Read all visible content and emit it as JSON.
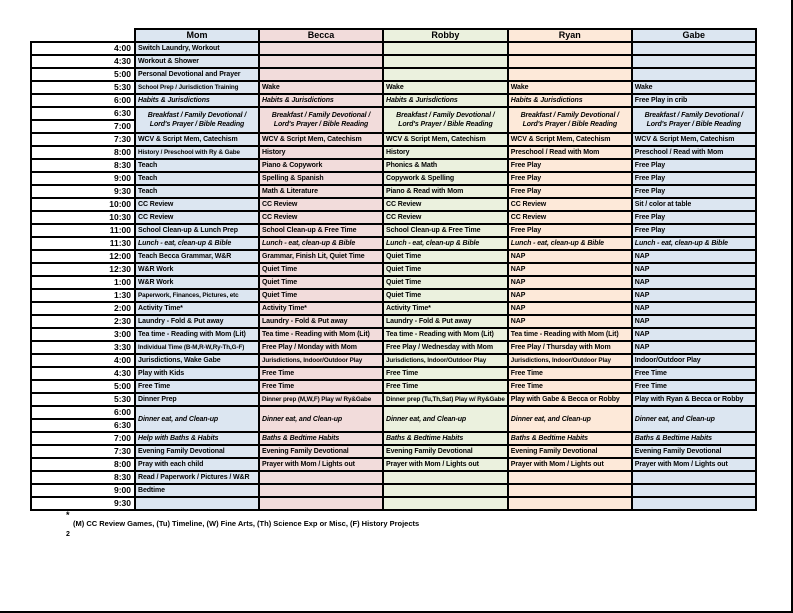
{
  "page": {
    "footnote_marker": "*",
    "footnote_text": "(M) CC Review Games, (Tu) Timeline, (W) Fine Arts, (Th) Science Exp or Misc, (F) History Projects",
    "page_number": "2"
  },
  "schedule": {
    "people": [
      {
        "label": "Mom",
        "color": "#dce6f1"
      },
      {
        "label": "Becca",
        "color": "#f2dcdb"
      },
      {
        "label": "Robby",
        "color": "#ebf1de"
      },
      {
        "label": "Ryan",
        "color": "#fde9d9"
      },
      {
        "label": "Gabe",
        "color": "#dce6f1"
      }
    ],
    "rows": [
      {
        "time": "4:00",
        "cells": [
          {
            "t": "Switch Laundry, Workout"
          },
          {
            "t": ""
          },
          {
            "t": ""
          },
          {
            "t": ""
          },
          {
            "t": ""
          }
        ]
      },
      {
        "time": "4:30",
        "cells": [
          {
            "t": "Workout & Shower"
          },
          {
            "t": ""
          },
          {
            "t": ""
          },
          {
            "t": ""
          },
          {
            "t": ""
          }
        ]
      },
      {
        "time": "5:00",
        "cells": [
          {
            "t": "Personal Devotional and Prayer"
          },
          {
            "t": ""
          },
          {
            "t": ""
          },
          {
            "t": ""
          },
          {
            "t": ""
          }
        ]
      },
      {
        "time": "5:30",
        "cells": [
          {
            "t": "School Prep / Jurisdiction Training"
          },
          {
            "t": "Wake"
          },
          {
            "t": "Wake"
          },
          {
            "t": "Wake"
          },
          {
            "t": "Wake"
          }
        ]
      },
      {
        "time": "6:00",
        "cells": [
          {
            "t": "Habits & Jurisdictions",
            "em": 1
          },
          {
            "t": "Habits & Jurisdictions",
            "em": 1
          },
          {
            "t": "Habits & Jurisdictions",
            "em": 1
          },
          {
            "t": "Habits & Jurisdictions",
            "em": 1
          },
          {
            "t": "Free Play in crib"
          }
        ]
      },
      {
        "time": "6:30",
        "cells": [
          {
            "t": "Breakfast / Family Devotional / Lord's Prayer / Bible Reading",
            "em": 1,
            "span": 2,
            "center": 1
          },
          {
            "t": "Breakfast / Family Devotional / Lord's Prayer / Bible Reading",
            "em": 1,
            "span": 2,
            "center": 1
          },
          {
            "t": "Breakfast / Family Devotional / Lord's Prayer / Bible Reading",
            "em": 1,
            "span": 2,
            "center": 1
          },
          {
            "t": "Breakfast / Family Devotional / Lord's Prayer / Bible Reading",
            "em": 1,
            "span": 2,
            "center": 1
          },
          {
            "t": "Breakfast / Family Devotional / Lord's Prayer / Bible Reading",
            "em": 1,
            "span": 2,
            "center": 1
          }
        ]
      },
      {
        "time": "7:00",
        "cells": [
          {
            "skip": 1
          },
          {
            "skip": 1
          },
          {
            "skip": 1
          },
          {
            "skip": 1
          },
          {
            "skip": 1
          }
        ]
      },
      {
        "time": "7:30",
        "cells": [
          {
            "t": "WCV & Script Mem, Catechism"
          },
          {
            "t": "WCV & Script Mem, Catechism"
          },
          {
            "t": "WCV & Script Mem, Catechism"
          },
          {
            "t": "WCV & Script Mem, Catechism"
          },
          {
            "t": "WCV & Script Mem, Catechism"
          }
        ]
      },
      {
        "time": "8:00",
        "cells": [
          {
            "t": "History / Preschool with Ry & Gabe"
          },
          {
            "t": "History"
          },
          {
            "t": "History"
          },
          {
            "t": "Preschool / Read with Mom"
          },
          {
            "t": "Preschool / Read with Mom"
          }
        ]
      },
      {
        "time": "8:30",
        "cells": [
          {
            "t": "Teach"
          },
          {
            "t": "Piano & Copywork"
          },
          {
            "t": "Phonics & Math"
          },
          {
            "t": "Free Play"
          },
          {
            "t": "Free Play"
          }
        ]
      },
      {
        "time": "9:00",
        "cells": [
          {
            "t": "Teach"
          },
          {
            "t": "Spelling & Spanish"
          },
          {
            "t": "Copywork & Spelling"
          },
          {
            "t": "Free Play"
          },
          {
            "t": "Free Play"
          }
        ]
      },
      {
        "time": "9:30",
        "cells": [
          {
            "t": "Teach"
          },
          {
            "t": "Math & Literature"
          },
          {
            "t": "Piano & Read with Mom"
          },
          {
            "t": "Free Play"
          },
          {
            "t": "Free Play"
          }
        ]
      },
      {
        "time": "10:00",
        "cells": [
          {
            "t": "CC Review"
          },
          {
            "t": "CC Review"
          },
          {
            "t": "CC Review"
          },
          {
            "t": "CC Review"
          },
          {
            "t": "Sit / color at table"
          }
        ]
      },
      {
        "time": "10:30",
        "cells": [
          {
            "t": "CC Review"
          },
          {
            "t": "CC Review"
          },
          {
            "t": "CC Review"
          },
          {
            "t": "CC Review"
          },
          {
            "t": "Free Play"
          }
        ]
      },
      {
        "time": "11:00",
        "cells": [
          {
            "t": "School Clean-up & Lunch Prep"
          },
          {
            "t": "School Clean-up & Free Time"
          },
          {
            "t": "School Clean-up & Free Time"
          },
          {
            "t": "Free Play"
          },
          {
            "t": "Free Play"
          }
        ]
      },
      {
        "time": "11:30",
        "cells": [
          {
            "t": "Lunch - eat, clean-up & Bible",
            "em": 1
          },
          {
            "t": "Lunch - eat, clean-up & Bible",
            "em": 1
          },
          {
            "t": "Lunch - eat, clean-up & Bible",
            "em": 1
          },
          {
            "t": "Lunch - eat, clean-up & Bible",
            "em": 1
          },
          {
            "t": "Lunch - eat, clean-up & Bible",
            "em": 1
          }
        ]
      },
      {
        "time": "12:00",
        "cells": [
          {
            "t": "Teach Becca Grammar, W&R"
          },
          {
            "t": "Grammar, Finish Lit, Quiet Time"
          },
          {
            "t": "Quiet Time"
          },
          {
            "t": "NAP"
          },
          {
            "t": "NAP"
          }
        ]
      },
      {
        "time": "12:30",
        "cells": [
          {
            "t": "W&R Work"
          },
          {
            "t": "Quiet Time"
          },
          {
            "t": "Quiet Time"
          },
          {
            "t": "NAP"
          },
          {
            "t": "NAP"
          }
        ]
      },
      {
        "time": "1:00",
        "cells": [
          {
            "t": "W&R Work"
          },
          {
            "t": "Quiet Time"
          },
          {
            "t": "Quiet Time"
          },
          {
            "t": "NAP"
          },
          {
            "t": "NAP"
          }
        ]
      },
      {
        "time": "1:30",
        "cells": [
          {
            "t": "Paperwork, Finances, Pictures, etc"
          },
          {
            "t": "Quiet Time"
          },
          {
            "t": "Quiet Time"
          },
          {
            "t": "NAP"
          },
          {
            "t": "NAP"
          }
        ]
      },
      {
        "time": "2:00",
        "cells": [
          {
            "t": "Activity Time*"
          },
          {
            "t": "Activity Time*"
          },
          {
            "t": "Activity Time*"
          },
          {
            "t": "NAP"
          },
          {
            "t": "NAP"
          }
        ]
      },
      {
        "time": "2:30",
        "cells": [
          {
            "t": "Laundry - Fold & Put away"
          },
          {
            "t": "Laundry - Fold & Put away"
          },
          {
            "t": "Laundry - Fold & Put away"
          },
          {
            "t": "NAP"
          },
          {
            "t": "NAP"
          }
        ]
      },
      {
        "time": "3:00",
        "cells": [
          {
            "t": "Tea time - Reading with Mom (Lit)"
          },
          {
            "t": "Tea time - Reading with Mom (Lit)"
          },
          {
            "t": "Tea time - Reading with Mom (Lit)"
          },
          {
            "t": "Tea time - Reading with Mom (Lit)"
          },
          {
            "t": "NAP"
          }
        ]
      },
      {
        "time": "3:30",
        "cells": [
          {
            "t": "Individual Time (B-M,R-W,Ry-Th,G-F)"
          },
          {
            "t": "Free Play / Monday with Mom"
          },
          {
            "t": "Free Play / Wednesday with Mom"
          },
          {
            "t": "Free Play / Thursday with Mom"
          },
          {
            "t": "NAP"
          }
        ]
      },
      {
        "time": "4:00",
        "cells": [
          {
            "t": "Jurisdictions, Wake Gabe"
          },
          {
            "t": "Jurisdictions, Indoor/Outdoor Play"
          },
          {
            "t": "Jurisdictions, Indoor/Outdoor Play"
          },
          {
            "t": "Jurisdictions, Indoor/Outdoor Play"
          },
          {
            "t": "Indoor/Outdoor Play"
          }
        ]
      },
      {
        "time": "4:30",
        "cells": [
          {
            "t": "Play with Kids"
          },
          {
            "t": "Free Time"
          },
          {
            "t": "Free Time"
          },
          {
            "t": "Free Time"
          },
          {
            "t": "Free Time"
          }
        ]
      },
      {
        "time": "5:00",
        "cells": [
          {
            "t": "Free Time"
          },
          {
            "t": "Free Time"
          },
          {
            "t": "Free Time"
          },
          {
            "t": "Free Time"
          },
          {
            "t": "Free Time"
          }
        ]
      },
      {
        "time": "5:30",
        "cells": [
          {
            "t": "Dinner Prep"
          },
          {
            "t": "Dinner prep (M,W,F) Play w/ Ry&Gabe"
          },
          {
            "t": "Dinner prep (Tu,Th,Sat) Play w/ Ry&Gabe"
          },
          {
            "t": "Play with Gabe & Becca or Robby"
          },
          {
            "t": "Play with Ryan & Becca or Robby"
          }
        ]
      },
      {
        "time": "6:00",
        "cells": [
          {
            "t": "Dinner eat, and Clean-up",
            "em": 1,
            "span": 2
          },
          {
            "t": "Dinner eat, and Clean-up",
            "em": 1,
            "span": 2
          },
          {
            "t": "Dinner eat, and Clean-up",
            "em": 1,
            "span": 2
          },
          {
            "t": "Dinner eat, and Clean-up",
            "em": 1,
            "span": 2
          },
          {
            "t": "Dinner eat, and Clean-up",
            "em": 1,
            "span": 2
          }
        ]
      },
      {
        "time": "6:30",
        "cells": [
          {
            "skip": 1
          },
          {
            "skip": 1
          },
          {
            "skip": 1
          },
          {
            "skip": 1
          },
          {
            "skip": 1
          }
        ]
      },
      {
        "time": "7:00",
        "cells": [
          {
            "t": "Help with Baths & Habits",
            "em": 1
          },
          {
            "t": "Baths & Bedtime Habits",
            "em": 1
          },
          {
            "t": "Baths & Bedtime Habits",
            "em": 1
          },
          {
            "t": "Baths & Bedtime Habits",
            "em": 1
          },
          {
            "t": "Baths & Bedtime Habits",
            "em": 1
          }
        ]
      },
      {
        "time": "7:30",
        "cells": [
          {
            "t": "Evening Family Devotional"
          },
          {
            "t": "Evening Family Devotional"
          },
          {
            "t": "Evening Family Devotional"
          },
          {
            "t": "Evening Family Devotional"
          },
          {
            "t": "Evening Family Devotional"
          }
        ]
      },
      {
        "time": "8:00",
        "cells": [
          {
            "t": "Pray with each child"
          },
          {
            "t": "Prayer with Mom / Lights out"
          },
          {
            "t": "Prayer with Mom / Lights out"
          },
          {
            "t": "Prayer with Mom / Lights out"
          },
          {
            "t": "Prayer with Mom / Lights out"
          }
        ]
      },
      {
        "time": "8:30",
        "cells": [
          {
            "t": "Read / Paperwork / Pictures / W&R"
          },
          {
            "t": ""
          },
          {
            "t": ""
          },
          {
            "t": ""
          },
          {
            "t": ""
          }
        ]
      },
      {
        "time": "9:00",
        "cells": [
          {
            "t": "Bedtime"
          },
          {
            "t": ""
          },
          {
            "t": ""
          },
          {
            "t": ""
          },
          {
            "t": ""
          }
        ]
      },
      {
        "time": "9:30",
        "cells": [
          {
            "t": ""
          },
          {
            "t": ""
          },
          {
            "t": ""
          },
          {
            "t": ""
          },
          {
            "t": ""
          }
        ]
      }
    ]
  }
}
